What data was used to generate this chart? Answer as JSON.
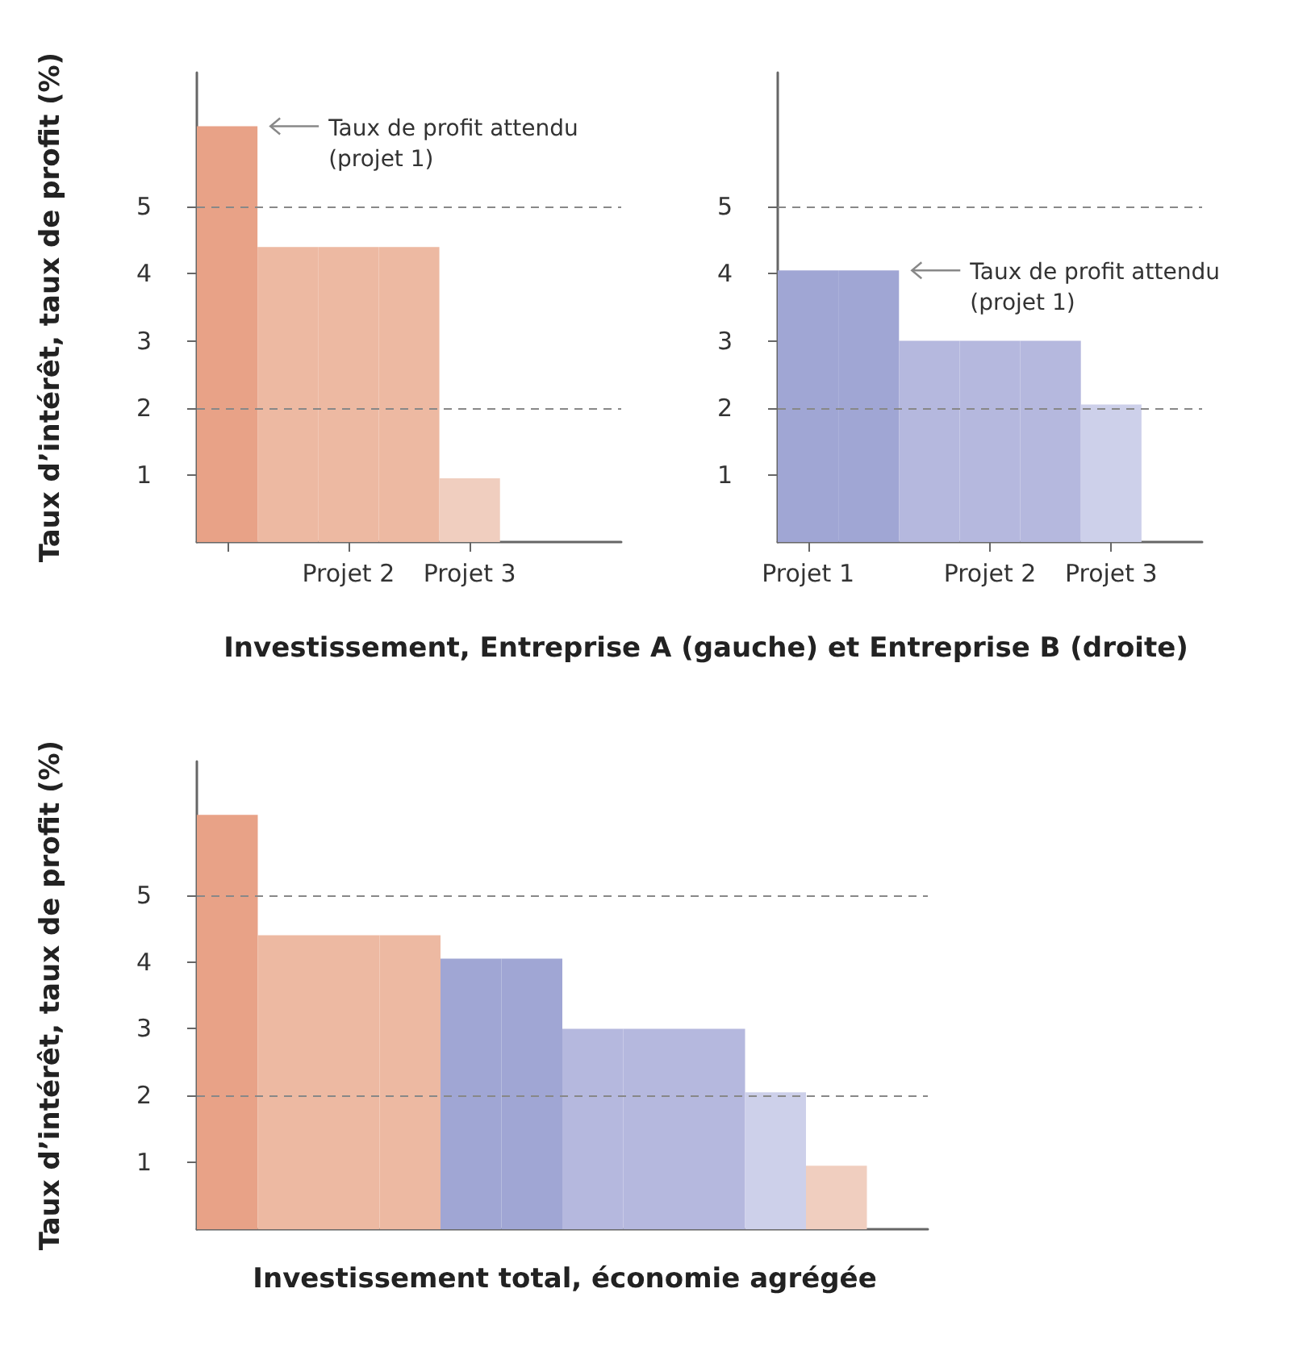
{
  "chart_data": [
    {
      "type": "bar",
      "ylabel": "Taux d’intérêt, taux de profit (%)",
      "xlabel": "Investissement, Entreprise A (gauche) et Entreprise B (droite)",
      "categories": [
        null,
        null,
        "Projet 2",
        null,
        "Projet 3",
        null,
        null
      ],
      "values": [
        6.2,
        4.4,
        4.4,
        4.4,
        0.95,
        null,
        null
      ],
      "colors": [
        "#e8a287",
        "#edb9a2",
        "#edb9a2",
        "#edb9a2",
        "#f0cebf",
        "#f0cebf",
        "#f0cebf"
      ],
      "ylim": [
        0,
        7
      ],
      "yticks": [
        1,
        2,
        3,
        4,
        5
      ],
      "grid": false,
      "ref_lines": [
        {
          "axis": "y",
          "value": 5,
          "color": "#888888",
          "line_style": "dashed"
        },
        {
          "axis": "y",
          "value": 2,
          "color": "#888888",
          "line_style": "dashed"
        }
      ],
      "annotations": [
        "Taux de profit attendu\n(projet 1)"
      ]
    },
    {
      "type": "bar",
      "categories": [
        "Projet 1",
        null,
        null,
        "Projet 2",
        null,
        "Projet 3",
        null
      ],
      "values": [
        4.05,
        4.05,
        3,
        3,
        3,
        2.05,
        null
      ],
      "colors": [
        "#a0a6d4",
        "#a0a6d4",
        "#b5b8de",
        "#b5b8de",
        "#b5b8de",
        "#cdd0ea",
        "#cdd0ea"
      ],
      "ylim": [
        0,
        7
      ],
      "yticks": [
        1,
        2,
        3,
        4,
        5
      ],
      "grid": false,
      "ref_lines": [
        {
          "axis": "y",
          "value": 5,
          "color": "#888888",
          "line_style": "dashed"
        },
        {
          "axis": "y",
          "value": 2,
          "color": "#888888",
          "line_style": "dashed"
        }
      ],
      "annotations": [
        "Taux de profit attendu\n(projet 1)"
      ]
    },
    {
      "type": "bar",
      "ylabel": "Taux d’intérêt, taux de profit (%)",
      "xlabel": "Investissement total, économie agrégée",
      "categories": [
        null,
        null,
        null,
        null,
        null,
        null,
        null,
        null,
        null,
        null,
        null,
        null
      ],
      "values": [
        6.2,
        4.4,
        4.4,
        4.4,
        4.05,
        4.05,
        3,
        3,
        3,
        2.05,
        0.95,
        null
      ],
      "colors": [
        "#e8a287",
        "#edb9a2",
        "#edb9a2",
        "#edb9a2",
        "#a0a6d4",
        "#a0a6d4",
        "#b5b8de",
        "#b5b8de",
        "#b5b8de",
        "#cdd0ea",
        "#f0cebf",
        "#f0cebf"
      ],
      "ylim": [
        0,
        7
      ],
      "yticks": [
        1,
        2,
        3,
        4,
        5
      ],
      "grid": false,
      "ref_lines": [
        {
          "axis": "y",
          "value": 5,
          "color": "#888888",
          "line_style": "dashed"
        },
        {
          "axis": "y",
          "value": 2,
          "color": "#888888",
          "line_style": "dashed"
        }
      ]
    }
  ]
}
